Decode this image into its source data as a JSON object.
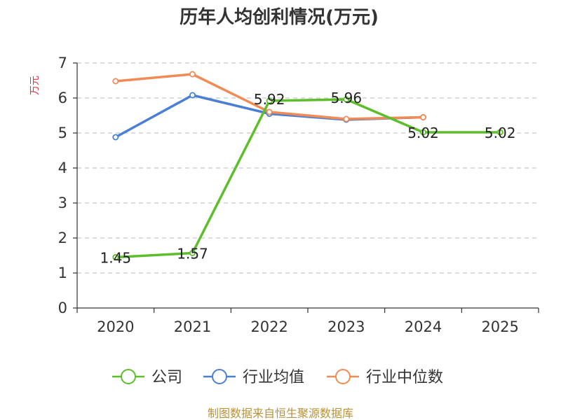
{
  "chart_data": {
    "type": "line",
    "title": "历年人均创利情况(万元)",
    "xlabel": "",
    "ylabel": "万元",
    "categories": [
      "2020",
      "2021",
      "2022",
      "2023",
      "2024",
      "2025"
    ],
    "yticks": [
      "0",
      "1",
      "2",
      "3",
      "4",
      "5",
      "6",
      "7"
    ],
    "ylim": [
      0,
      7
    ],
    "grid": true,
    "legend_position": "bottom",
    "series": [
      {
        "name": "公司",
        "color": "#5cbf2a",
        "values": [
          1.45,
          1.57,
          5.92,
          5.96,
          5.02,
          5.02
        ],
        "labels": [
          "1.45",
          "1.57",
          "5.92",
          "5.96",
          "5.02",
          "5.02"
        ]
      },
      {
        "name": "行业均值",
        "color": "#4a7fd6",
        "values": [
          4.88,
          6.08,
          5.55,
          5.38,
          5.45,
          null
        ],
        "labels": []
      },
      {
        "name": "行业中位数",
        "color": "#f28a55",
        "values": [
          6.48,
          6.68,
          5.6,
          5.4,
          5.45,
          null
        ],
        "labels": []
      }
    ],
    "source": "制图数据来自恒生聚源数据库"
  }
}
